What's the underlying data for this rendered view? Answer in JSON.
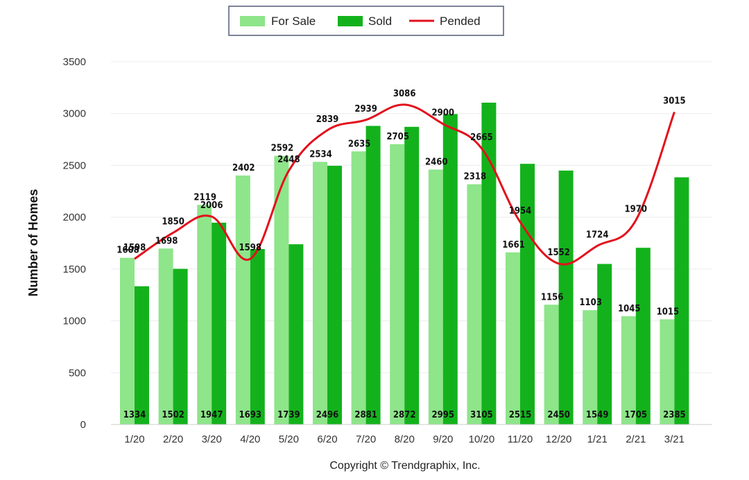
{
  "chart_data": {
    "type": "bar",
    "categories": [
      "1/20",
      "2/20",
      "3/20",
      "4/20",
      "5/20",
      "6/20",
      "7/20",
      "8/20",
      "9/20",
      "10/20",
      "11/20",
      "12/20",
      "1/21",
      "2/21",
      "3/21"
    ],
    "series": [
      {
        "name": "For Sale",
        "type": "bar",
        "color": "#8ee58a",
        "values": [
          1608,
          1698,
          2119,
          2402,
          2592,
          2534,
          2635,
          2705,
          2460,
          2318,
          1661,
          1156,
          1103,
          1045,
          1015
        ]
      },
      {
        "name": "Sold",
        "type": "bar",
        "color": "#13b21c",
        "values": [
          1334,
          1502,
          1947,
          1693,
          1739,
          2496,
          2881,
          2872,
          2995,
          3105,
          2515,
          2450,
          1549,
          1705,
          2385
        ]
      },
      {
        "name": "Pended",
        "type": "line",
        "color": "#e3101c",
        "values": [
          1598,
          1850,
          2006,
          1598,
          2448,
          2839,
          2939,
          3086,
          2900,
          2665,
          1954,
          1552,
          1724,
          1970,
          3015
        ]
      }
    ],
    "title": "",
    "xlabel": "",
    "ylabel": "Number of Homes",
    "ylim": [
      0,
      3500
    ],
    "yticks": [
      0,
      500,
      1000,
      1500,
      2000,
      2500,
      3000,
      3500
    ],
    "grid": true,
    "legend": "top-center"
  },
  "footer": {
    "copyright": "Copyright © Trendgraphix, Inc."
  }
}
